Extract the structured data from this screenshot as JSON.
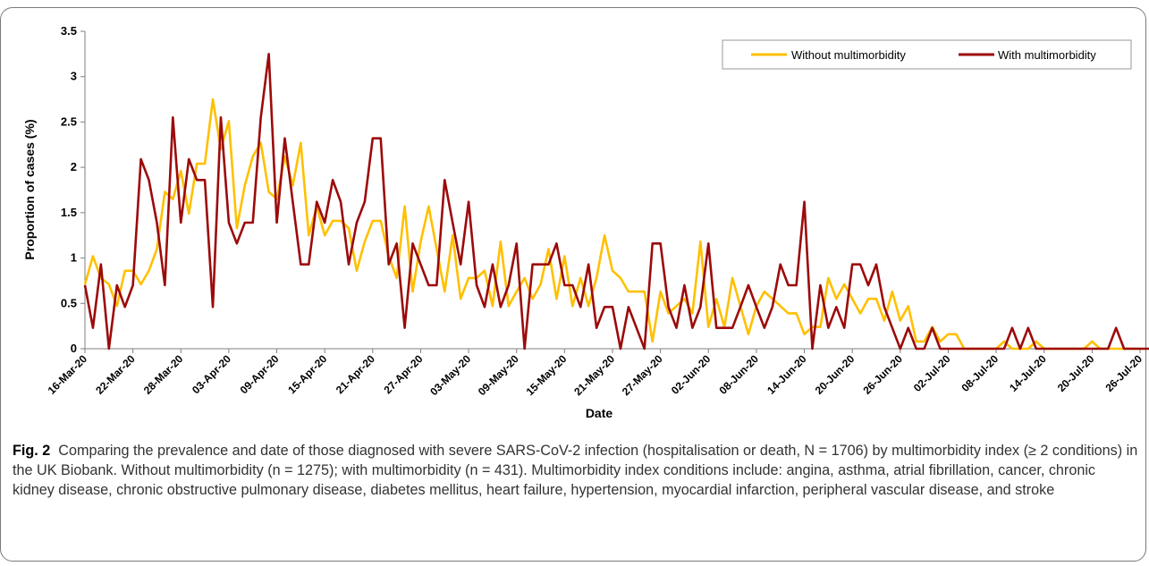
{
  "chart_data": {
    "type": "line",
    "xlabel": "Date",
    "ylabel": "Proportion of cases (%)",
    "ylim": [
      0,
      3.5
    ],
    "yticks": [
      "0",
      "0.5",
      "1",
      "1.5",
      "2",
      "2.5",
      "3",
      "3.5"
    ],
    "x_start_date": "16-Mar-20",
    "x_tick_labels": [
      "16-Mar-20",
      "22-Mar-20",
      "28-Mar-20",
      "03-Apr-20",
      "09-Apr-20",
      "15-Apr-20",
      "21-Apr-20",
      "27-Apr-20",
      "03-May-20",
      "09-May-20",
      "15-May-20",
      "21-May-20",
      "27-May-20",
      "02-Jun-20",
      "08-Jun-20",
      "14-Jun-20",
      "20-Jun-20",
      "26-Jun-20",
      "02-Jul-20",
      "08-Jul-20",
      "14-Jul-20",
      "20-Jul-20",
      "26-Jul-20"
    ],
    "grid": false,
    "legend_position": "top-right",
    "series": [
      {
        "name": "Without multimorbidity",
        "color": "#ffc000",
        "values": [
          0.71,
          1.02,
          0.78,
          0.71,
          0.47,
          0.86,
          0.86,
          0.71,
          0.86,
          1.1,
          1.73,
          1.65,
          1.96,
          1.49,
          2.04,
          2.04,
          2.75,
          2.2,
          2.51,
          1.33,
          1.8,
          2.12,
          2.27,
          1.73,
          1.65,
          2.12,
          1.8,
          2.27,
          1.25,
          1.57,
          1.25,
          1.41,
          1.41,
          1.33,
          0.86,
          1.18,
          1.41,
          1.41,
          1.02,
          0.78,
          1.57,
          0.63,
          1.18,
          1.57,
          1.1,
          0.63,
          1.25,
          0.55,
          0.78,
          0.78,
          0.86,
          0.47,
          1.18,
          0.47,
          0.63,
          0.78,
          0.55,
          0.71,
          1.1,
          0.55,
          1.02,
          0.47,
          0.78,
          0.47,
          0.78,
          1.25,
          0.86,
          0.78,
          0.63,
          0.63,
          0.63,
          0.08,
          0.63,
          0.39,
          0.47,
          0.55,
          0.39,
          1.18,
          0.24,
          0.55,
          0.24,
          0.78,
          0.47,
          0.16,
          0.47,
          0.63,
          0.55,
          0.47,
          0.39,
          0.39,
          0.16,
          0.24,
          0.24,
          0.78,
          0.55,
          0.71,
          0.55,
          0.39,
          0.55,
          0.55,
          0.31,
          0.63,
          0.31,
          0.47,
          0.08,
          0.08,
          0.24,
          0.08,
          0.16,
          0.16,
          0.0,
          0.0,
          0.0,
          0.0,
          0.0,
          0.08,
          0.0,
          0.0,
          0.0,
          0.08,
          0.0,
          0.0,
          0.0,
          0.0,
          0.0,
          0.0,
          0.08,
          0.0,
          0.0,
          0.0,
          0.0,
          0.0,
          0.0
        ]
      },
      {
        "name": "With multimorbidity",
        "color": "#9c0a0a",
        "values": [
          0.7,
          0.23,
          0.93,
          0.0,
          0.7,
          0.46,
          0.7,
          2.09,
          1.86,
          1.39,
          0.7,
          2.55,
          1.39,
          2.09,
          1.86,
          1.86,
          0.46,
          2.55,
          1.39,
          1.16,
          1.39,
          1.39,
          2.55,
          3.25,
          1.39,
          2.32,
          1.62,
          0.93,
          0.93,
          1.62,
          1.39,
          1.86,
          1.62,
          0.93,
          1.39,
          1.62,
          2.32,
          2.32,
          0.93,
          1.16,
          0.23,
          1.16,
          0.93,
          0.7,
          0.7,
          1.86,
          1.39,
          0.93,
          1.62,
          0.7,
          0.46,
          0.93,
          0.46,
          0.7,
          1.16,
          0.0,
          0.93,
          0.93,
          0.93,
          1.16,
          0.7,
          0.7,
          0.46,
          0.93,
          0.23,
          0.46,
          0.46,
          0.0,
          0.46,
          0.23,
          0.0,
          1.16,
          1.16,
          0.46,
          0.23,
          0.7,
          0.23,
          0.46,
          1.16,
          0.23,
          0.23,
          0.23,
          0.46,
          0.7,
          0.46,
          0.23,
          0.46,
          0.93,
          0.7,
          0.7,
          1.62,
          0.0,
          0.7,
          0.23,
          0.46,
          0.23,
          0.93,
          0.93,
          0.7,
          0.93,
          0.46,
          0.23,
          0.0,
          0.23,
          0.0,
          0.0,
          0.23,
          0.0,
          0.0,
          0.0,
          0.0,
          0.0,
          0.0,
          0.0,
          0.0,
          0.0,
          0.23,
          0.0,
          0.23,
          0.0,
          0.0,
          0.0,
          0.0,
          0.0,
          0.0,
          0.0,
          0.0,
          0.0,
          0.0,
          0.23,
          0.0,
          0.0,
          0.0,
          0.0,
          0.0,
          0.0,
          0.0
        ]
      }
    ]
  },
  "caption": {
    "label": "Fig. 2",
    "text": "Comparing the prevalence and date of those diagnosed with severe SARS-CoV-2 infection (hospitalisation or death, N = 1706) by multimorbidity index (≥ 2 conditions) in the UK Biobank. Without multimorbidity (n = 1275); with multimorbidity (n = 431). Multimorbidity index conditions include: angina, asthma, atrial fibrillation, cancer, chronic kidney disease, chronic obstructive pulmonary disease, diabetes mellitus, heart failure, hypertension, myocardial infarction, peripheral vascular disease, and stroke"
  }
}
